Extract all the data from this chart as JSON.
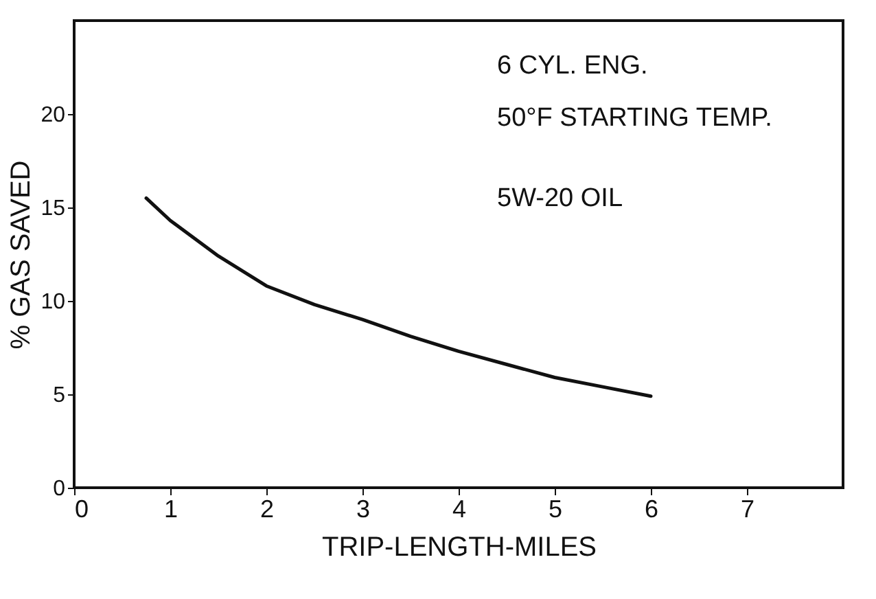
{
  "chart_data": {
    "type": "line",
    "xlabel": "TRIP-LENGTH-MILES",
    "ylabel": "% GAS SAVED",
    "x": [
      0.75,
      1,
      1.5,
      2,
      2.5,
      3,
      3.5,
      4,
      4.5,
      5,
      5.5,
      6
    ],
    "series": [
      {
        "color": "#111111",
        "values": [
          15.5,
          14.3,
          12.4,
          10.8,
          9.8,
          9.0,
          8.1,
          7.3,
          6.6,
          5.9,
          5.4,
          4.9
        ]
      }
    ],
    "xlim": [
      0,
      8
    ],
    "xticks": [
      0,
      1,
      2,
      3,
      4,
      5,
      6,
      7
    ],
    "ylim": [
      0,
      25
    ],
    "yticks": [
      0,
      5,
      10,
      15,
      20
    ],
    "annotations": [
      "6 CYL. ENG.",
      "50°F STARTING TEMP.",
      "5W-20 OIL"
    ],
    "grid": false,
    "legend": false,
    "marker": "none",
    "line_style": "solid"
  }
}
